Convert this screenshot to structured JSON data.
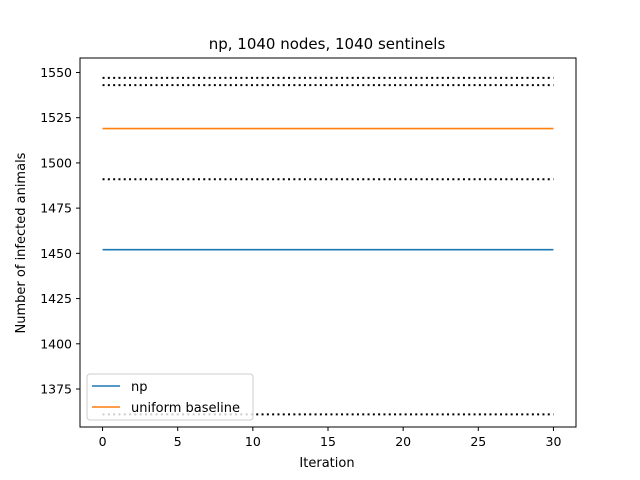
{
  "chart_data": {
    "type": "line",
    "title": "np, 1040 nodes, 1040 sentinels",
    "xlabel": "Iteration",
    "ylabel": "Number of infected animals",
    "xlim": [
      -1.5,
      31.5
    ],
    "ylim": [
      1354,
      1558
    ],
    "xticks": [
      0,
      5,
      10,
      15,
      20,
      25,
      30
    ],
    "yticks": [
      1375,
      1400,
      1425,
      1450,
      1475,
      1500,
      1525,
      1550
    ],
    "x": [
      0,
      30
    ],
    "series": [
      {
        "name": "np",
        "values": [
          1452,
          1452
        ],
        "color": "#1f77b4",
        "style": "solid"
      },
      {
        "name": "uniform baseline",
        "values": [
          1519,
          1519
        ],
        "color": "#ff7f0e",
        "style": "solid"
      }
    ],
    "reference_lines": [
      {
        "values": [
          1547,
          1547
        ],
        "color": "#000000",
        "style": "dotted"
      },
      {
        "values": [
          1543,
          1543
        ],
        "color": "#000000",
        "style": "dotted"
      },
      {
        "values": [
          1491,
          1491
        ],
        "color": "#000000",
        "style": "dotted"
      },
      {
        "values": [
          1361,
          1361
        ],
        "color": "#000000",
        "style": "dotted"
      }
    ],
    "legend": {
      "placement": "lower-left",
      "entries": [
        "np",
        "uniform baseline"
      ]
    },
    "grid": false
  }
}
